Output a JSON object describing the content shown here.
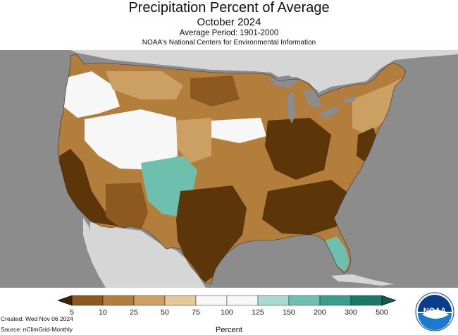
{
  "header": {
    "title": "Precipitation Percent of Average",
    "subtitle": "October 2024",
    "period": "Average Period: 1901-2000",
    "organization": "NOAA's National Centers for Environmental Information"
  },
  "legend": {
    "title": "Percent",
    "ticks": [
      "5",
      "10",
      "25",
      "50",
      "75",
      "100",
      "125",
      "150",
      "200",
      "300",
      "500"
    ],
    "colors": [
      "#5c3608",
      "#8c5a20",
      "#b37d3c",
      "#cca062",
      "#e3c99b",
      "#f7f7f7",
      "#f7f7f7",
      "#a9d9d0",
      "#6dbfae",
      "#3a9e8a",
      "#187a66"
    ],
    "under_color": "#3f2305",
    "over_color": "#0e5c4c"
  },
  "footer": {
    "created": "Created: Wed Nov 06 2024",
    "source": "Source: nClimGrid-Monthly"
  },
  "logo": {
    "text": "NOAA",
    "icon": "noaa-logo-icon"
  },
  "map_colors": {
    "background": "#8c8c8c",
    "land_outside": "#d6d6d6",
    "water": "#8c8c8c",
    "very_dry": "#5c3608",
    "dry": "#8c5a20",
    "mod_dry": "#b37d3c",
    "slight_dry": "#cca062",
    "near_normal": "#e3c99b",
    "normal": "#f7f7f7",
    "wet": "#6dbfae"
  }
}
